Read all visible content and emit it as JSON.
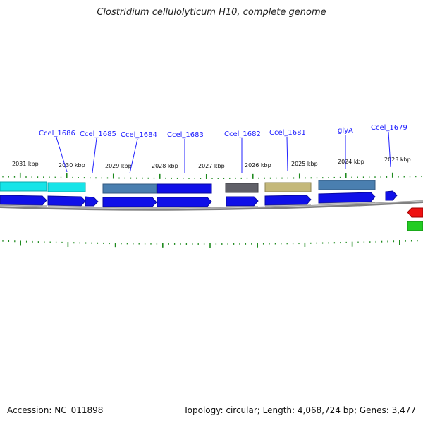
{
  "title": "Clostridium cellulolyticum H10, complete genome",
  "footer": {
    "accession": "Accession: NC_011898",
    "summary": "Topology: circular; Length: 4,068,724 bp; Genes: 3,477"
  },
  "scale_ticks": [
    "2031 kbp",
    "2030 kbp",
    "2029 kbp",
    "2028 kbp",
    "2027 kbp",
    "2026 kbp",
    "2025 kbp",
    "2024 kbp",
    "2023 kbp"
  ],
  "gene_labels": [
    "Ccel_1686",
    "Ccel_1685",
    "Ccel_1684",
    "Ccel_1683",
    "Ccel_1682",
    "Ccel_1681",
    "glyA",
    "Ccel_1679"
  ],
  "colors": {
    "cds": "#1010e8",
    "cyan": "#16e4e8",
    "steelblue": "#4a7fb0",
    "gray": "#606068",
    "khaki": "#c4b87a",
    "red": "#ee1111",
    "green": "#22cc22",
    "tick": "#1e8a1e",
    "backbone": "#808080",
    "label_line": "#2222ff"
  }
}
